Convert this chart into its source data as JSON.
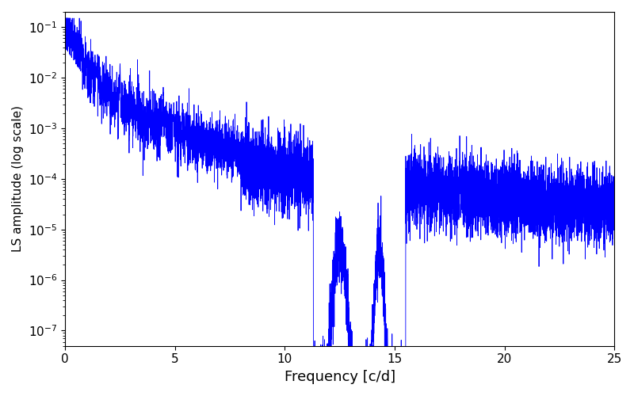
{
  "xlabel": "Frequency [c/d]",
  "ylabel": "LS amplitude (log scale)",
  "xlim": [
    0,
    25
  ],
  "ylim": [
    5e-08,
    0.2
  ],
  "line_color": "#0000ff",
  "line_width": 0.6,
  "figsize": [
    8.0,
    5.0
  ],
  "dpi": 100,
  "xlabel_fontsize": 13,
  "ylabel_fontsize": 11,
  "tick_labelsize": 11,
  "seed": 7,
  "n_points": 12000,
  "freq_max": 25.0,
  "yticks": [
    1e-07,
    1e-06,
    1e-05,
    0.0001,
    0.001,
    0.01,
    0.1
  ]
}
